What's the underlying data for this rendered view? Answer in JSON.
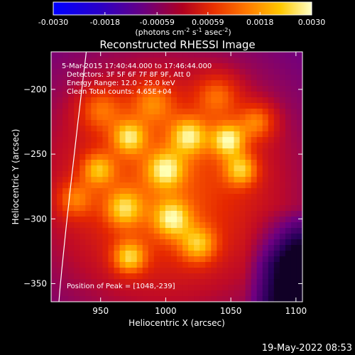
{
  "chart_data": {
    "type": "heatmap",
    "title": "Reconstructed RHESSI Image",
    "xlabel": "Heliocentric X (arcsec)",
    "ylabel": "Heliocentric Y (arcsec)",
    "xlim": [
      912,
      1105
    ],
    "ylim": [
      -364,
      -171
    ],
    "x_ticks": [
      950,
      1000,
      1050,
      1100
    ],
    "y_ticks": [
      -200,
      -250,
      -300,
      -350
    ],
    "colorbar": {
      "min": -0.003,
      "max": 0.003,
      "tick_values": [
        -0.003,
        -0.0018,
        -0.00059,
        0.00059,
        0.0018,
        0.003
      ],
      "tick_labels": [
        "-0.0030",
        "-0.0018",
        "-0.00059",
        "0.00059",
        "0.0018",
        "0.0030"
      ],
      "unit_label": "(photons cm",
      "unit_exp1": "-2",
      "unit_mid": " s",
      "unit_exp2": "-1",
      "unit_mid2": " asec",
      "unit_exp3": "-2",
      "unit_end": ")"
    },
    "annotations": [
      "5-Mar-2015 17:40:44.000 to 17:46:44.000",
      "Detectors: 3F 5F 6F 7F 8F 9F, Att 0",
      "Energy Range: 12.0 - 25.0 keV",
      "Clean     Total counts: 4.65E+04"
    ],
    "peak_label": "Position of Peak = [1048,-239]",
    "peak": [
      1048,
      -239
    ],
    "sources": [
      {
        "x": 1048,
        "y": -239,
        "amp": 1.0,
        "sigma": 9
      },
      {
        "x": 1018,
        "y": -236,
        "amp": 0.85,
        "sigma": 10
      },
      {
        "x": 972,
        "y": -237,
        "amp": 0.82,
        "sigma": 9
      },
      {
        "x": 948,
        "y": -262,
        "amp": 0.7,
        "sigma": 9
      },
      {
        "x": 1000,
        "y": -262,
        "amp": 0.78,
        "sigma": 10
      },
      {
        "x": 1058,
        "y": -262,
        "amp": 0.8,
        "sigma": 9
      },
      {
        "x": 968,
        "y": -292,
        "amp": 0.72,
        "sigma": 10
      },
      {
        "x": 1005,
        "y": -300,
        "amp": 0.8,
        "sigma": 10
      },
      {
        "x": 1025,
        "y": -320,
        "amp": 0.72,
        "sigma": 10
      },
      {
        "x": 972,
        "y": -330,
        "amp": 0.85,
        "sigma": 9
      },
      {
        "x": 930,
        "y": -285,
        "amp": 0.55,
        "sigma": 10
      },
      {
        "x": 1070,
        "y": -225,
        "amp": 0.65,
        "sigma": 10
      },
      {
        "x": 1040,
        "y": -205,
        "amp": 0.55,
        "sigma": 12
      },
      {
        "x": 990,
        "y": -210,
        "amp": 0.55,
        "sigma": 12
      },
      {
        "x": 950,
        "y": -215,
        "amp": 0.55,
        "sigma": 12
      }
    ],
    "limb_label": "",
    "grid": false
  },
  "footer": {
    "date": "19-May-2022 08:53"
  }
}
